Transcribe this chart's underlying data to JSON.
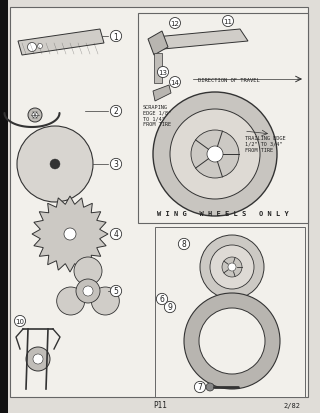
{
  "bg_color": "#f2f0eb",
  "page_bg": "#e0ddd8",
  "border_color": "#666666",
  "text_color": "#222222",
  "line_color": "#333333",
  "title": "P11",
  "page_num": "2/82",
  "wing_wheels_label": "W I N G   W H E E L S   O N L Y",
  "direction_label": "DIRECTION OF TRAVEL",
  "scraping_label": "SCRAPING\nEDGE 1/8\"\nTO 1/4\"\nFROM TIRE",
  "trailing_label": "TRAILING EDGE\n1/2\" TO 3/4\"\nFROM TIRE"
}
